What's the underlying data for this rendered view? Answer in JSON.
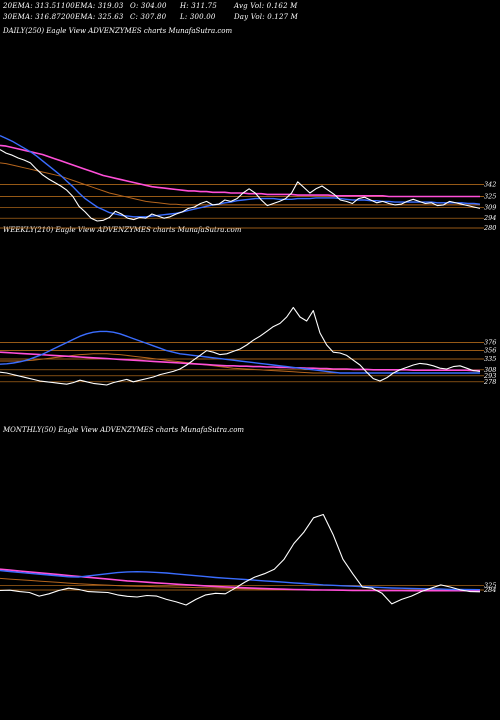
{
  "header": {
    "row1": [
      "20EMA: 313.51",
      "100EMA: 319.03",
      "O: 304.00",
      "H: 311.75",
      "Avg Vol: 0.162  M"
    ],
    "row2": [
      "30EMA: 316.87",
      "200EMA: 325.63",
      "C: 307.80",
      "L: 300.00",
      "Day Vol: 0.127 M"
    ]
  },
  "panels": {
    "daily": {
      "title": "DAILY(250) Eagle   View  ADVENZYMES charts MunafaSutra.com"
    },
    "weekly": {
      "title": "WEEKLY(210) Eagle   View  ADVENZYMES charts MunafaSutra.com"
    },
    "monthly": {
      "title": "MONTHLY(50) Eagle   View  ADVENZYMES charts MunafaSutra.com"
    }
  },
  "colors": {
    "background": "#000000",
    "price": "#ffffff",
    "ema_short": "#ffffff",
    "ema_blue": "#3a6dff",
    "ema_long": "#ff4fd8",
    "ema_brown": "#b5651d",
    "level_line": "#c8771e"
  },
  "chart_data": [
    {
      "type": "line",
      "panel": "daily",
      "ylim": [
        280,
        420
      ],
      "level_labels": [
        342,
        325,
        309,
        294,
        280
      ],
      "series": [
        {
          "role": "price",
          "values": [
            392,
            387,
            384,
            380,
            377,
            373,
            364,
            356,
            350,
            345,
            340,
            334,
            325,
            311,
            303,
            294,
            290,
            291,
            295,
            304,
            300,
            294,
            292,
            295,
            294,
            300,
            297,
            294,
            296,
            300,
            303,
            308,
            310,
            315,
            318,
            313,
            314,
            320,
            318,
            322,
            330,
            336,
            330,
            320,
            312,
            315,
            318,
            322,
            330,
            346,
            338,
            330,
            336,
            340,
            334,
            328,
            320,
            318,
            315,
            322,
            324,
            320,
            316,
            318,
            315,
            313,
            314,
            318,
            321,
            318,
            315,
            316,
            312,
            313,
            318,
            316,
            314,
            312,
            310,
            308
          ]
        },
        {
          "role": "ema_blue",
          "values": [
            412,
            408,
            404,
            399,
            394,
            389,
            383,
            376,
            369,
            362,
            355,
            347,
            339,
            330,
            322,
            316,
            310,
            306,
            302,
            300,
            298,
            297,
            296,
            296,
            296,
            297,
            298,
            299,
            300,
            301,
            303,
            305,
            307,
            309,
            311,
            313,
            314,
            316,
            317,
            319,
            320,
            321,
            322,
            322,
            322,
            322,
            321,
            321,
            321,
            322,
            322,
            322,
            323,
            323,
            323,
            323,
            322,
            321,
            320,
            320,
            320,
            319,
            319,
            318,
            318,
            317,
            317,
            317,
            317,
            317,
            317,
            317,
            316,
            316,
            316,
            316,
            316,
            315,
            315,
            314
          ]
        },
        {
          "role": "ema_long",
          "values": [
            398,
            397,
            395,
            393,
            391,
            389,
            387,
            385,
            382,
            379,
            376,
            373,
            370,
            367,
            364,
            361,
            358,
            355,
            353,
            351,
            349,
            347,
            345,
            343,
            341,
            339,
            338,
            337,
            336,
            335,
            334,
            333,
            333,
            332,
            332,
            331,
            331,
            331,
            330,
            330,
            330,
            329,
            329,
            329,
            328,
            328,
            328,
            328,
            328,
            327,
            327,
            327,
            327,
            327,
            327,
            326,
            326,
            326,
            326,
            326,
            326,
            326,
            326,
            326,
            325,
            325,
            325,
            325,
            325,
            325,
            325,
            325,
            325,
            325,
            325,
            325,
            325,
            325,
            325,
            325
          ]
        },
        {
          "role": "ema_brown",
          "values": [
            373,
            372,
            370,
            368,
            366,
            364,
            362,
            360,
            358,
            356,
            354,
            351,
            348,
            345,
            342,
            339,
            336,
            333,
            330,
            328,
            326,
            324,
            322,
            320,
            318,
            317,
            316,
            315,
            314,
            314,
            313,
            313,
            313,
            313,
            313,
            313,
            313,
            313,
            313,
            313,
            313,
            313,
            313,
            313,
            313,
            313,
            313,
            313,
            313,
            313,
            313,
            313,
            313,
            313,
            313,
            313,
            313,
            313,
            313,
            313,
            313,
            313,
            313,
            313,
            313,
            313,
            313,
            313,
            313,
            313,
            313,
            313,
            313,
            313,
            313,
            313,
            313,
            313,
            313,
            313
          ]
        }
      ]
    },
    {
      "type": "line",
      "panel": "weekly",
      "ylim": [
        270,
        470
      ],
      "level_labels": [
        376,
        356,
        335,
        308,
        293,
        278
      ],
      "series": [
        {
          "role": "price",
          "values": [
            302,
            300,
            296,
            292,
            288,
            284,
            280,
            278,
            276,
            274,
            272,
            276,
            282,
            278,
            274,
            272,
            270,
            276,
            280,
            284,
            278,
            282,
            286,
            290,
            296,
            300,
            304,
            310,
            320,
            332,
            344,
            356,
            352,
            346,
            348,
            354,
            360,
            370,
            382,
            392,
            404,
            416,
            424,
            440,
            464,
            440,
            430,
            456,
            400,
            370,
            352,
            350,
            344,
            332,
            320,
            302,
            286,
            280,
            288,
            300,
            308,
            314,
            320,
            324,
            322,
            318,
            312,
            310,
            316,
            318,
            312,
            306,
            304
          ]
        },
        {
          "role": "ema_blue",
          "values": [
            322,
            323,
            325,
            328,
            332,
            338,
            344,
            352,
            360,
            368,
            376,
            384,
            392,
            398,
            402,
            404,
            404,
            402,
            398,
            392,
            386,
            380,
            374,
            368,
            362,
            356,
            352,
            348,
            346,
            344,
            342,
            340,
            338,
            336,
            334,
            332,
            330,
            328,
            326,
            324,
            322,
            320,
            318,
            316,
            314,
            312,
            310,
            308,
            306,
            304,
            302,
            300,
            300,
            300,
            300,
            300,
            300,
            300,
            300,
            300,
            300,
            300,
            300,
            300,
            300,
            300,
            300,
            300,
            300,
            300,
            300,
            300,
            300
          ]
        },
        {
          "role": "ema_long",
          "values": [
            352,
            351,
            350,
            349,
            348,
            347,
            346,
            345,
            344,
            343,
            342,
            341,
            340,
            339,
            338,
            337,
            336,
            335,
            334,
            333,
            332,
            331,
            330,
            329,
            328,
            327,
            326,
            325,
            324,
            323,
            322,
            321,
            320,
            319,
            318,
            318,
            317,
            317,
            316,
            316,
            315,
            315,
            314,
            314,
            313,
            313,
            312,
            312,
            311,
            311,
            310,
            310,
            310,
            309,
            309,
            309,
            308,
            308,
            308,
            308,
            308,
            308,
            307,
            307,
            307,
            307,
            307,
            307,
            307,
            307,
            307,
            306,
            306
          ]
        },
        {
          "role": "ema_brown",
          "values": [
            330,
            330,
            330,
            330,
            331,
            332,
            334,
            336,
            338,
            340,
            342,
            344,
            346,
            347,
            348,
            348,
            348,
            347,
            346,
            344,
            342,
            340,
            338,
            336,
            334,
            332,
            330,
            328,
            326,
            324,
            322,
            320,
            318,
            316,
            314,
            312,
            311,
            310,
            309,
            308,
            307,
            306,
            305,
            304,
            303,
            302,
            301,
            300,
            300,
            300,
            300,
            300,
            300,
            300,
            300,
            300,
            300,
            300,
            300,
            300,
            300,
            300,
            300,
            300,
            300,
            300,
            300,
            300,
            300,
            300,
            300,
            300,
            300
          ]
        }
      ]
    },
    {
      "type": "line",
      "panel": "monthly",
      "ylim": [
        150,
        1000
      ],
      "level_labels": [
        325,
        284
      ],
      "series": [
        {
          "role": "price",
          "values": [
            280,
            282,
            270,
            262,
            230,
            250,
            280,
            300,
            290,
            270,
            265,
            262,
            240,
            228,
            222,
            235,
            230,
            200,
            178,
            150,
            200,
            240,
            255,
            250,
            300,
            355,
            400,
            430,
            470,
            560,
            700,
            800,
            930,
            960,
            780,
            560,
            430,
            310,
            300,
            255,
            160,
            200,
            230,
            270,
            300,
            330,
            310,
            285,
            270,
            268
          ]
        },
        {
          "role": "ema_blue",
          "values": [
            458,
            450,
            442,
            434,
            426,
            418,
            410,
            402,
            400,
            410,
            420,
            430,
            440,
            446,
            448,
            446,
            442,
            436,
            428,
            420,
            412,
            404,
            396,
            390,
            384,
            378,
            372,
            366,
            360,
            354,
            348,
            342,
            336,
            330,
            326,
            322,
            318,
            314,
            310,
            306,
            302,
            300,
            298,
            296,
            294,
            292,
            290,
            289,
            288,
            287
          ]
        },
        {
          "role": "ema_long",
          "values": [
            470,
            462,
            454,
            446,
            438,
            430,
            422,
            414,
            406,
            398,
            390,
            382,
            374,
            366,
            360,
            354,
            348,
            342,
            336,
            331,
            326,
            321,
            316,
            312,
            308,
            304,
            300,
            297,
            294,
            291,
            289,
            287,
            285,
            284,
            283,
            282,
            281,
            280,
            280,
            279,
            279,
            279,
            278,
            278,
            278,
            278,
            278,
            278,
            278,
            278
          ]
        },
        {
          "role": "ema_brown",
          "values": [
            388,
            382,
            376,
            370,
            364,
            358,
            352,
            346,
            340,
            336,
            332,
            328,
            324,
            320,
            318,
            316,
            314,
            312,
            310,
            308,
            306,
            304,
            302,
            300,
            298,
            296,
            294,
            292,
            290,
            288,
            287,
            286,
            285,
            284,
            284,
            283,
            283,
            283,
            283,
            283,
            283,
            283,
            283,
            283,
            283,
            283,
            283,
            283,
            283,
            283
          ]
        }
      ]
    }
  ]
}
